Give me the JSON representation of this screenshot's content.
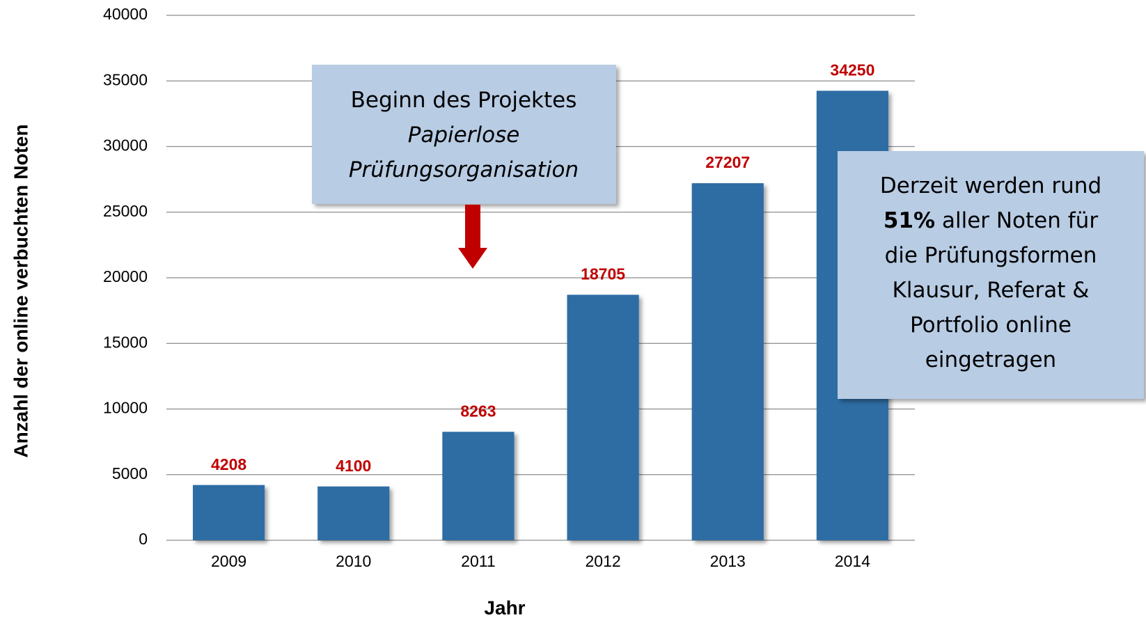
{
  "chart_data": {
    "type": "bar",
    "categories": [
      "2009",
      "2010",
      "2011",
      "2012",
      "2013",
      "2014"
    ],
    "values": [
      4208,
      4100,
      8263,
      18705,
      27207,
      34250
    ],
    "color": "#2e6da4",
    "value_label_color": "#c00000",
    "ylim": [
      0,
      40000
    ],
    "yticks": [
      0,
      5000,
      10000,
      15000,
      20000,
      25000,
      30000,
      35000,
      40000
    ],
    "grid": true,
    "xlabel": "Jahr",
    "ylabel": "Anzahl der online verbuchten Noten",
    "annotations": [
      {
        "lines": [
          [
            {
              "text": "Beginn des Projektes",
              "style": "normal"
            }
          ],
          [
            {
              "text": "Papierlose",
              "style": "italic"
            }
          ],
          [
            {
              "text": "Prüfungsorganisation",
              "style": "italic"
            }
          ]
        ]
      },
      {
        "lines": [
          [
            {
              "text": "Derzeit werden rund",
              "style": "normal"
            }
          ],
          [
            {
              "text": "51%",
              "style": "bold"
            },
            {
              "text": " aller Noten für",
              "style": "normal"
            }
          ],
          [
            {
              "text": "die Prüfungsformen",
              "style": "normal"
            }
          ],
          [
            {
              "text": "Klausur, Referat &",
              "style": "normal"
            }
          ],
          [
            {
              "text": "Portfolio online",
              "style": "normal"
            }
          ],
          [
            {
              "text": "eingetragen",
              "style": "normal"
            }
          ]
        ]
      }
    ]
  }
}
